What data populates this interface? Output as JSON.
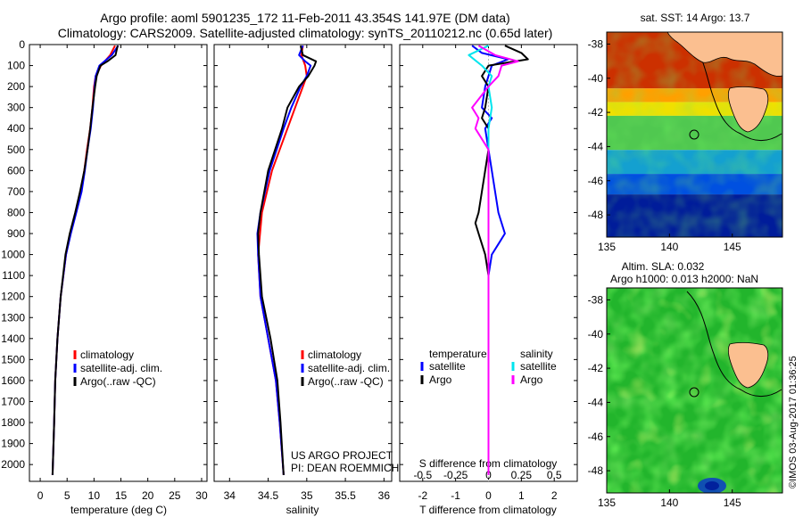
{
  "header": {
    "title_line1": "Argo profile: aoml 5901235_172 11-Feb-2011 43.354S 141.97E (DM data)",
    "title_line2": "Climatology: CARS2009. Satellite-adjusted climatology: synTS_20110212.nc (0.65d later)"
  },
  "colors": {
    "climatology": "#ff0000",
    "satellite": "#0000ff",
    "argo": "#000000",
    "salinity_satellite": "#00e5ee",
    "salinity_argo": "#ff00ff"
  },
  "chart_data": [
    {
      "id": "temperature",
      "type": "line",
      "xlabel": "temperature (deg C)",
      "ylabel": "",
      "xlim": [
        -2,
        31
      ],
      "ylim": [
        2080,
        0
      ],
      "xticks": [
        0,
        5,
        10,
        15,
        20,
        25,
        30
      ],
      "yticks": [
        0,
        100,
        200,
        300,
        400,
        500,
        600,
        700,
        800,
        900,
        1000,
        1100,
        1200,
        1300,
        1400,
        1500,
        1600,
        1700,
        1800,
        1900,
        2000
      ],
      "legend": {
        "position": "lower-middle",
        "entries": [
          "climatology",
          "satellite-adj. clim.",
          "Argo(..raw -QC)"
        ]
      },
      "series": [
        {
          "name": "climatology",
          "color": "#ff0000",
          "depth": [
            5,
            50,
            100,
            150,
            200,
            300,
            400,
            500,
            600,
            700,
            800,
            900,
            1000,
            1200,
            1400,
            1600,
            1800,
            2050
          ],
          "values": [
            13.9,
            13.0,
            11.3,
            10.3,
            10.0,
            9.7,
            9.3,
            8.7,
            8.2,
            7.6,
            6.6,
            5.6,
            4.8,
            3.8,
            3.2,
            2.8,
            2.6,
            2.3
          ]
        },
        {
          "name": "satellite-adj. clim.",
          "color": "#0000ff",
          "depth": [
            5,
            50,
            100,
            150,
            200,
            300,
            400,
            500,
            600,
            700,
            800,
            900,
            1000,
            1200,
            1400,
            1600,
            1800,
            2050
          ],
          "values": [
            14.5,
            13.3,
            11.0,
            10.3,
            10.1,
            9.8,
            9.4,
            8.8,
            8.3,
            7.7,
            6.7,
            5.7,
            4.8,
            3.8,
            3.2,
            2.8,
            2.6,
            2.3
          ]
        },
        {
          "name": "Argo(..raw -QC)",
          "color": "#000000",
          "depth": [
            5,
            50,
            80,
            100,
            150,
            200,
            300,
            400,
            500,
            600,
            700,
            800,
            900,
            1000,
            1200,
            1400,
            1600,
            1800,
            2050
          ],
          "values": [
            14.4,
            14.0,
            12.5,
            11.2,
            10.5,
            10.2,
            9.7,
            9.3,
            8.8,
            8.2,
            7.4,
            6.5,
            5.5,
            4.7,
            3.8,
            3.2,
            2.8,
            2.6,
            2.3
          ]
        }
      ]
    },
    {
      "id": "salinity",
      "type": "line",
      "xlabel": "salinity",
      "ylabel": "",
      "xlim": [
        33.8,
        36.1
      ],
      "ylim": [
        2080,
        0
      ],
      "xticks": [
        34,
        34.5,
        35,
        35.5,
        36
      ],
      "legend": {
        "position": "lower-middle",
        "entries": [
          "climatology",
          "satellite-adj. clim.",
          "Argo(..raw -QC)"
        ]
      },
      "annotations": [
        "US ARGO PROJECT",
        "PI: DEAN ROEMMICH"
      ],
      "series": [
        {
          "name": "climatology",
          "color": "#ff0000",
          "depth": [
            5,
            50,
            100,
            150,
            200,
            300,
            400,
            600,
            800,
            1000,
            1200,
            1400,
            1600,
            1800,
            2050
          ],
          "values": [
            34.95,
            34.93,
            34.98,
            35.0,
            34.95,
            34.85,
            34.75,
            34.55,
            34.42,
            34.37,
            34.4,
            34.5,
            34.6,
            34.65,
            34.7
          ]
        },
        {
          "name": "satellite-adj. clim.",
          "color": "#0000ff",
          "depth": [
            5,
            50,
            80,
            100,
            150,
            200,
            300,
            400,
            600,
            800,
            900,
            1000,
            1200,
            1400,
            1600,
            1800,
            2050
          ],
          "values": [
            34.95,
            34.9,
            34.98,
            35.05,
            35.0,
            34.92,
            34.8,
            34.7,
            34.52,
            34.4,
            34.36,
            34.37,
            34.4,
            34.5,
            34.6,
            34.65,
            34.7
          ]
        },
        {
          "name": "Argo(..raw -QC)",
          "color": "#000000",
          "depth": [
            5,
            50,
            80,
            100,
            150,
            200,
            300,
            400,
            600,
            800,
            900,
            1000,
            1200,
            1400,
            1600,
            1800,
            2050
          ],
          "values": [
            34.92,
            34.95,
            35.12,
            35.1,
            35.02,
            34.9,
            34.75,
            34.68,
            34.5,
            34.4,
            34.37,
            34.38,
            34.42,
            34.53,
            34.62,
            34.66,
            34.7
          ]
        }
      ]
    },
    {
      "id": "differences",
      "type": "line",
      "xlabel": "T difference from climatology",
      "xlabel_top": "S difference from climatology",
      "xlim": [
        -2.7,
        2.7
      ],
      "ylim": [
        2080,
        0
      ],
      "xticks": [
        -2,
        -1,
        0,
        1,
        2
      ],
      "s_ticks": [
        "-0.5",
        "-0.25",
        "0",
        "0.25",
        "0.5"
      ],
      "s_tick_positions": [
        -2,
        -1,
        0,
        1,
        2
      ],
      "legend": {
        "position": "lower-middle",
        "temperature_heading": "temperature",
        "salinity_heading": "salinity",
        "entries": [
          "satellite",
          "Argo",
          "satellite",
          "Argo"
        ]
      },
      "series": [
        {
          "name": "temperature satellite",
          "color": "#0000ff",
          "depth": [
            5,
            40,
            70,
            100,
            150,
            200,
            300,
            350,
            400,
            500,
            600,
            700,
            800,
            850,
            900,
            950,
            1000,
            1100,
            1200,
            1400,
            1800,
            2050
          ],
          "values": [
            -0.5,
            -0.2,
            0.6,
            0.1,
            0.0,
            -0.1,
            -0.2,
            0.1,
            -0.1,
            0.0,
            0.1,
            0.2,
            0.3,
            0.4,
            0.5,
            0.3,
            0.1,
            0.0,
            0.0,
            0.0,
            0.0,
            0.0
          ]
        },
        {
          "name": "temperature Argo",
          "color": "#000000",
          "depth": [
            5,
            40,
            70,
            100,
            150,
            200,
            300,
            350,
            400,
            500,
            600,
            700,
            800,
            850,
            900,
            950,
            1000,
            1100,
            1200,
            1400,
            1800,
            2050
          ],
          "values": [
            0.5,
            1.0,
            1.2,
            0.0,
            -0.2,
            0.0,
            -0.1,
            -0.2,
            0.0,
            0.0,
            -0.1,
            -0.2,
            -0.3,
            -0.4,
            -0.3,
            -0.2,
            -0.1,
            0.0,
            0.0,
            0.0,
            0.0,
            0.0
          ]
        },
        {
          "name": "salinity satellite",
          "color": "#00e5ee",
          "depth": [
            5,
            50,
            100,
            150,
            200,
            300,
            400,
            600,
            800,
            1000,
            1400,
            2050
          ],
          "values": [
            0.0,
            -0.6,
            -0.2,
            0.1,
            0.0,
            0.1,
            0.0,
            0.0,
            0.0,
            0.0,
            0.0,
            0.0
          ]
        },
        {
          "name": "salinity Argo",
          "color": "#ff00ff",
          "depth": [
            5,
            50,
            80,
            100,
            150,
            200,
            300,
            350,
            400,
            500,
            600,
            1000,
            1400,
            2050
          ],
          "values": [
            -0.3,
            0.2,
            0.9,
            0.4,
            0.3,
            0.0,
            -0.5,
            -0.3,
            -0.4,
            0.0,
            0.0,
            0.0,
            0.0,
            0.0
          ]
        }
      ]
    },
    {
      "id": "sst_map",
      "type": "heatmap",
      "title": "sat. SST: 14 Argo: 13.7",
      "xlim": [
        135,
        149
      ],
      "ylim": [
        -49.3,
        -37.3
      ],
      "xticks": [
        135,
        140,
        145
      ],
      "yticks": [
        -38,
        -40,
        -42,
        -44,
        -46,
        -48
      ],
      "marker": {
        "lon": 141.97,
        "lat": -43.354
      },
      "bands": [
        {
          "lat_top": -37.3,
          "lat_bottom": -40.6,
          "color": "#cc3000"
        },
        {
          "lat_top": -40.6,
          "lat_bottom": -41.4,
          "color": "#ffa000"
        },
        {
          "lat_top": -41.4,
          "lat_bottom": -42.2,
          "color": "#f0e000"
        },
        {
          "lat_top": -42.2,
          "lat_bottom": -44.2,
          "color": "#50c850"
        },
        {
          "lat_top": -44.2,
          "lat_bottom": -45.6,
          "color": "#14a0d0"
        },
        {
          "lat_top": -45.6,
          "lat_bottom": -46.8,
          "color": "#0050e0"
        },
        {
          "lat_top": -46.8,
          "lat_bottom": -49.3,
          "color": "#001c9a"
        }
      ]
    },
    {
      "id": "sla_map",
      "type": "heatmap",
      "title_line1": "Altim. SLA: 0.032",
      "title_line2": "Argo h1000: 0.013 h2000: NaN",
      "xlim": [
        135,
        149
      ],
      "ylim": [
        -49.3,
        -37.3
      ],
      "xticks": [
        135,
        140,
        145
      ],
      "yticks": [
        -38,
        -40,
        -42,
        -44,
        -46,
        -48
      ],
      "marker": {
        "lon": 141.97,
        "lat": -43.354
      }
    }
  ],
  "footer": {
    "credit": "©IMOS 03-Aug-2017 01:36:25"
  }
}
